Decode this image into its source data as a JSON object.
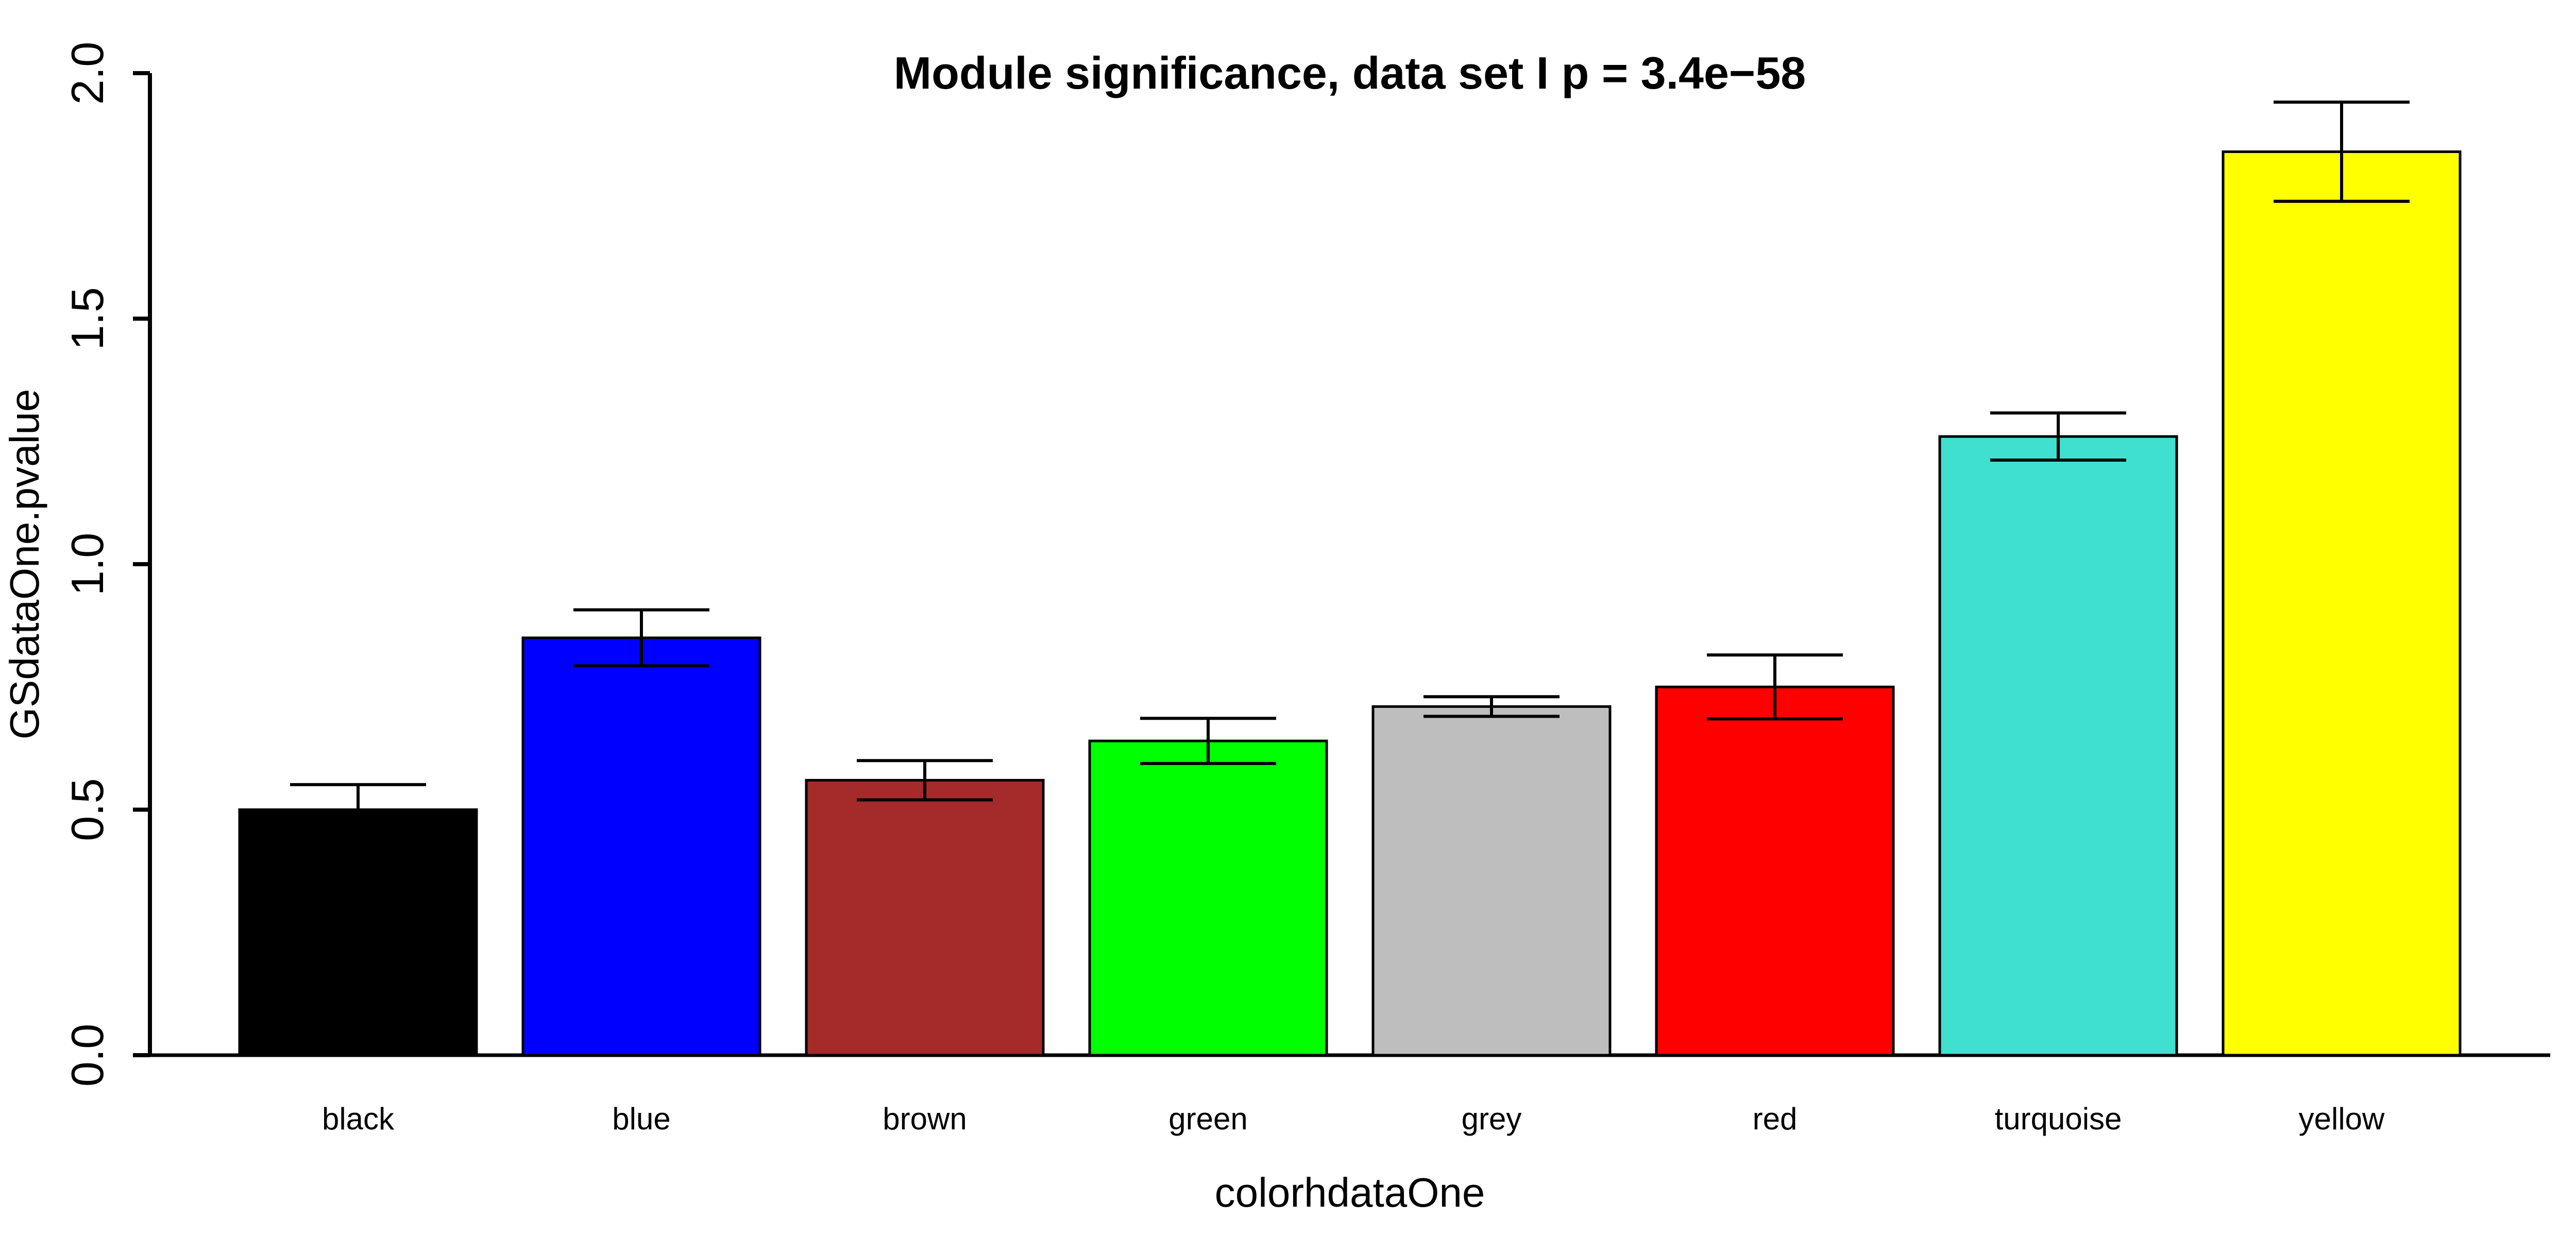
{
  "chart_data": {
    "type": "bar",
    "title": "Module significance, data set I p = 3.4e−58",
    "xlabel": "colorhdataOne",
    "ylabel": "GSdataOne.pvalue",
    "categories": [
      "black",
      "blue",
      "brown",
      "green",
      "grey",
      "red",
      "turquoise",
      "yellow"
    ],
    "values": [
      0.5,
      0.85,
      0.56,
      0.64,
      0.71,
      0.75,
      1.26,
      1.84
    ],
    "errors": [
      0.051,
      0.057,
      0.04,
      0.046,
      0.02,
      0.065,
      0.048,
      0.101
    ],
    "bar_colors": [
      "#000000",
      "#0000FF",
      "#A52A2A",
      "#00FF00",
      "#BEBEBE",
      "#FF0000",
      "#40E0D0",
      "#FFFF00"
    ],
    "bar_edge_color": "#000000",
    "error_bar_color": "#000000",
    "axis_color": "#000000",
    "background_color": "#FFFFFF",
    "ylim": [
      0,
      2
    ],
    "ytick_values": [
      0,
      0.5,
      1,
      1.5,
      2
    ],
    "ytick_labels": [
      "0.0",
      "0.5",
      "1.0",
      "1.5",
      "2.0"
    ],
    "grid": false,
    "legend": "none"
  }
}
